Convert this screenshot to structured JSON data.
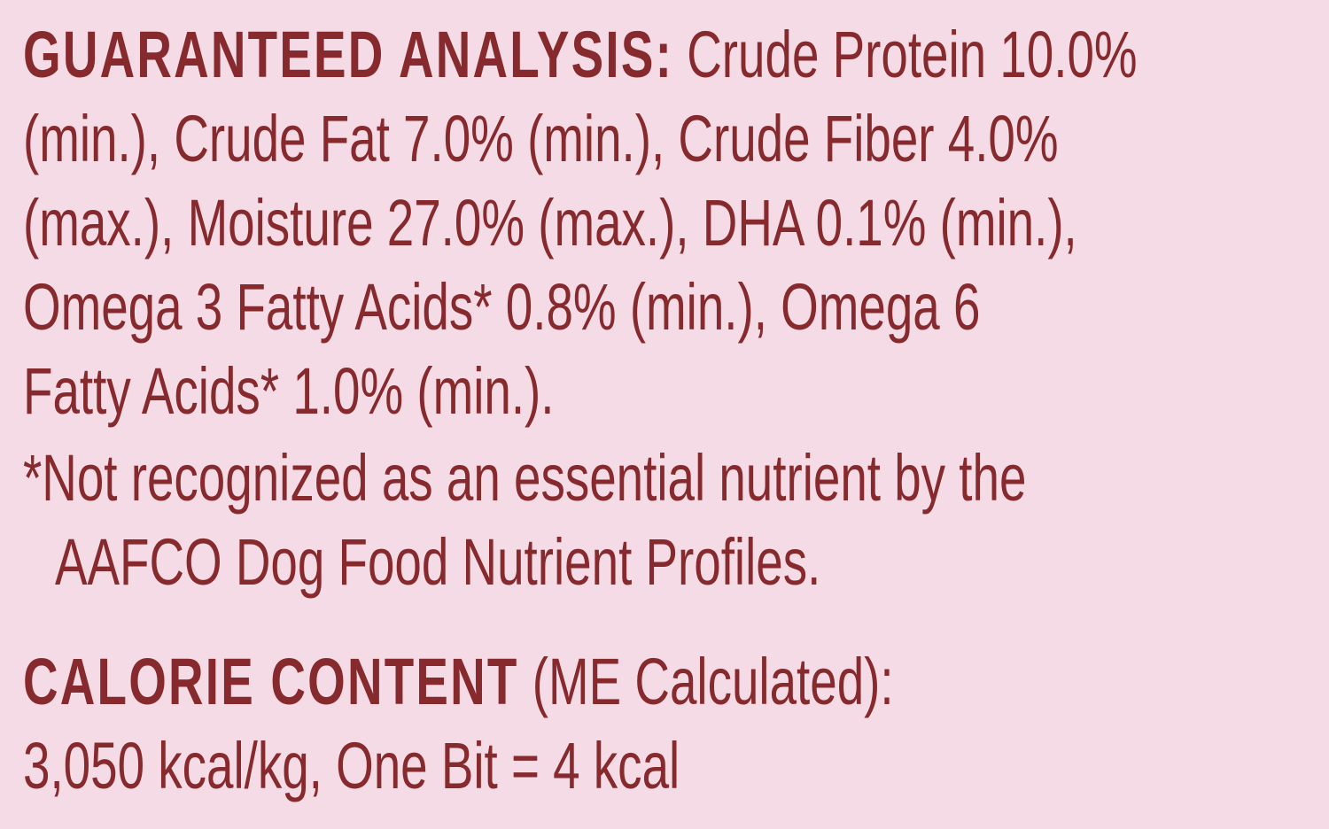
{
  "colors": {
    "background": "#f5dbe6",
    "text": "#862a2e"
  },
  "analysis": {
    "heading": "GUARANTEED ANALYSIS:",
    "lines": [
      "Crude Protein 10.0%",
      "(min.), Crude Fat 7.0% (min.), Crude Fiber 4.0%",
      "(max.), Moisture 27.0% (max.), DHA 0.1% (min.),",
      "Omega 3 Fatty Acids* 0.8% (min.), Omega 6",
      "Fatty Acids* 1.0% (min.)."
    ],
    "footnote": [
      "*Not recognized as an essential nutrient by the",
      "AAFCO Dog Food Nutrient Profiles."
    ]
  },
  "calorie": {
    "heading": "CALORIE CONTENT",
    "subheading": "(ME Calculated):",
    "value": "3,050 kcal/kg, One Bit = 4 kcal"
  }
}
